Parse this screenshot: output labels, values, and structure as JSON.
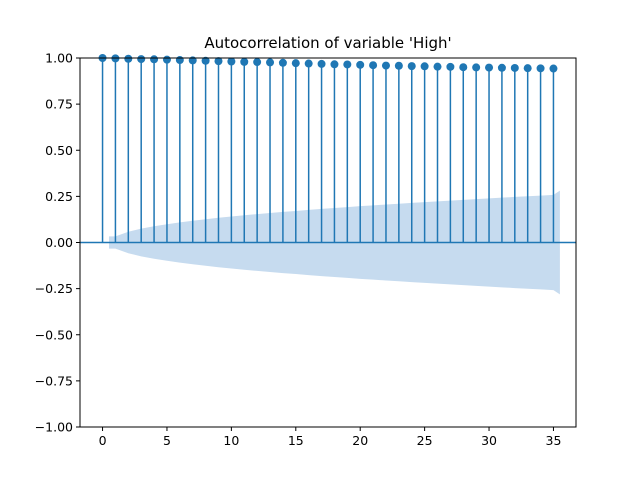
{
  "chart_data": {
    "type": "stem",
    "title": "Autocorrelation of variable 'High'",
    "xlabel": "",
    "ylabel": "",
    "xlim": [
      -1.75,
      36.75
    ],
    "ylim": [
      -1.0,
      1.0
    ],
    "xticks": [
      0,
      5,
      10,
      15,
      20,
      25,
      30,
      35
    ],
    "yticks": [
      -1.0,
      -0.75,
      -0.5,
      -0.25,
      0.0,
      0.25,
      0.5,
      0.75,
      1.0
    ],
    "xtick_labels": [
      "0",
      "5",
      "10",
      "15",
      "20",
      "25",
      "30",
      "35"
    ],
    "ytick_labels": [
      "−1.00",
      "−0.75",
      "−0.50",
      "−0.25",
      "0.00",
      "0.25",
      "0.50",
      "0.75",
      "1.00"
    ],
    "lags": [
      0,
      1,
      2,
      3,
      4,
      5,
      6,
      7,
      8,
      9,
      10,
      11,
      12,
      13,
      14,
      15,
      16,
      17,
      18,
      19,
      20,
      21,
      22,
      23,
      24,
      25,
      26,
      27,
      28,
      29,
      30,
      31,
      32,
      33,
      34,
      35
    ],
    "values": [
      1.0,
      0.998,
      0.996,
      0.994,
      0.993,
      0.991,
      0.989,
      0.987,
      0.985,
      0.983,
      0.981,
      0.979,
      0.978,
      0.976,
      0.974,
      0.972,
      0.97,
      0.968,
      0.966,
      0.965,
      0.963,
      0.961,
      0.959,
      0.958,
      0.956,
      0.955,
      0.953,
      0.952,
      0.95,
      0.949,
      0.948,
      0.947,
      0.946,
      0.945,
      0.944,
      0.943
    ],
    "confidence_band": {
      "x": [
        0.5,
        1,
        2,
        3,
        4,
        5,
        6,
        7,
        8,
        9,
        10,
        11,
        12,
        13,
        14,
        15,
        16,
        17,
        18,
        19,
        20,
        21,
        22,
        23,
        24,
        25,
        26,
        27,
        28,
        29,
        30,
        31,
        32,
        33,
        34,
        35,
        35.5
      ],
      "upper": [
        0.033,
        0.033,
        0.058,
        0.075,
        0.088,
        0.099,
        0.109,
        0.118,
        0.126,
        0.134,
        0.141,
        0.148,
        0.154,
        0.16,
        0.166,
        0.171,
        0.177,
        0.182,
        0.187,
        0.192,
        0.197,
        0.201,
        0.206,
        0.21,
        0.215,
        0.219,
        0.223,
        0.227,
        0.231,
        0.235,
        0.239,
        0.243,
        0.247,
        0.251,
        0.254,
        0.258,
        0.281
      ]
    },
    "colors": {
      "stem": "#1f77b4",
      "band": "#c6dbef",
      "axis": "#000000"
    },
    "grid": false
  }
}
